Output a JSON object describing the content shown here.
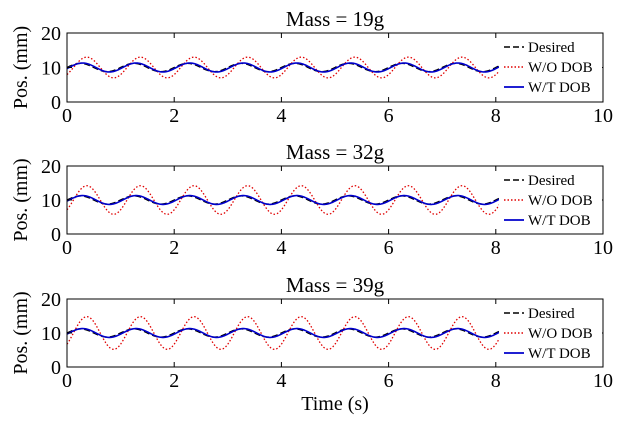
{
  "chart_data": [
    {
      "type": "line",
      "title": "Mass = 19g",
      "ylabel": "Pos. (mm)",
      "xlabel": "",
      "xlim": [
        0,
        10
      ],
      "ylim": [
        0,
        20
      ],
      "xticks": [
        "0",
        "2",
        "4",
        "6",
        "8",
        "10"
      ],
      "yticks": [
        "0",
        "10",
        "20"
      ],
      "legend_position": "top-right",
      "signal": {
        "period_s": 1.0,
        "t_end_s": 8.15
      },
      "series": [
        {
          "name": "Desired",
          "style": "dashed",
          "color": "#000000",
          "mean": 10,
          "amplitude": 1.2,
          "phase_s": 0.0
        },
        {
          "name": "W/O DOB",
          "style": "dotted",
          "color": "#e00000",
          "mean": 10,
          "amplitude": 3.0,
          "phase_s": 0.12
        },
        {
          "name": "W/T DOB",
          "style": "solid",
          "color": "#0000cc",
          "mean": 10,
          "amplitude": 1.3,
          "phase_s": 0.04
        }
      ]
    },
    {
      "type": "line",
      "title": "Mass = 32g",
      "ylabel": "Pos. (mm)",
      "xlabel": "",
      "xlim": [
        0,
        10
      ],
      "ylim": [
        0,
        20
      ],
      "xticks": [
        "0",
        "2",
        "4",
        "6",
        "8",
        "10"
      ],
      "yticks": [
        "0",
        "10",
        "20"
      ],
      "legend_position": "top-right",
      "signal": {
        "period_s": 1.0,
        "t_end_s": 8.15
      },
      "series": [
        {
          "name": "Desired",
          "style": "dashed",
          "color": "#000000",
          "mean": 10,
          "amplitude": 1.2,
          "phase_s": 0.0
        },
        {
          "name": "W/O DOB",
          "style": "dotted",
          "color": "#e00000",
          "mean": 10,
          "amplitude": 4.2,
          "phase_s": 0.12
        },
        {
          "name": "W/T DOB",
          "style": "solid",
          "color": "#0000cc",
          "mean": 10,
          "amplitude": 1.3,
          "phase_s": 0.04
        }
      ]
    },
    {
      "type": "line",
      "title": "Mass = 39g",
      "ylabel": "Pos. (mm)",
      "xlabel": "Time (s)",
      "xlim": [
        0,
        10
      ],
      "ylim": [
        0,
        20
      ],
      "xticks": [
        "0",
        "2",
        "4",
        "6",
        "8",
        "10"
      ],
      "yticks": [
        "0",
        "10",
        "20"
      ],
      "legend_position": "top-right",
      "signal": {
        "period_s": 1.0,
        "t_end_s": 8.15
      },
      "series": [
        {
          "name": "Desired",
          "style": "dashed",
          "color": "#000000",
          "mean": 10,
          "amplitude": 1.2,
          "phase_s": 0.0
        },
        {
          "name": "W/O DOB",
          "style": "dotted",
          "color": "#e00000",
          "mean": 10,
          "amplitude": 4.8,
          "phase_s": 0.12
        },
        {
          "name": "W/T DOB",
          "style": "solid",
          "color": "#0000cc",
          "mean": 10,
          "amplitude": 1.3,
          "phase_s": 0.04
        }
      ]
    }
  ]
}
